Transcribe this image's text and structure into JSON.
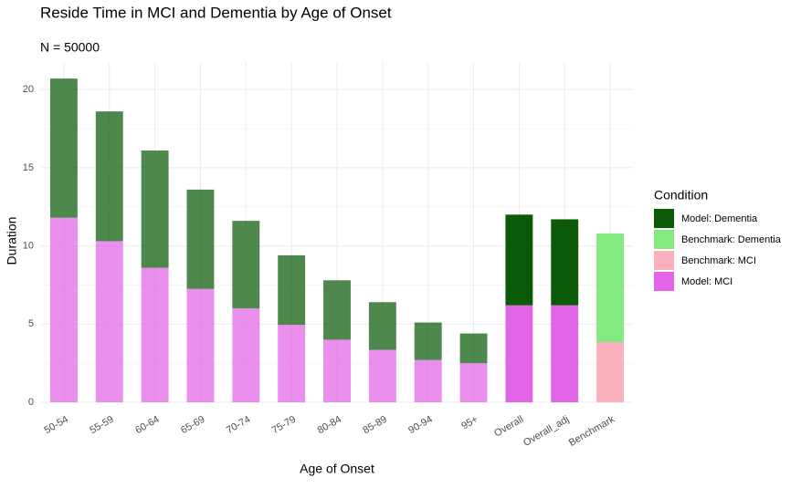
{
  "chart_data": {
    "type": "stacked_bar",
    "title": "Reside Time in MCI and Dementia by Age of Onset",
    "subtitle": "N = 50000",
    "x_label": "Age of Onset",
    "y_label": "Duration",
    "legend_title": "Condition",
    "categories": [
      "50-54",
      "55-59",
      "60-64",
      "65-69",
      "70-74",
      "75-79",
      "80-84",
      "85-89",
      "90-94",
      "95+",
      "Overall",
      "Overall_adj",
      "Benchmark"
    ],
    "series": [
      {
        "name": "Model: Dementia",
        "color": "#0b5a07",
        "values": [
          8.9,
          8.3,
          7.5,
          6.35,
          5.6,
          4.45,
          3.8,
          3.05,
          2.4,
          1.9,
          5.8,
          5.5,
          null
        ]
      },
      {
        "name": "Benchmark: Dementia",
        "color": "#82ea80",
        "values": [
          null,
          null,
          null,
          null,
          null,
          null,
          null,
          null,
          null,
          null,
          null,
          null,
          6.95
        ]
      },
      {
        "name": "Benchmark: MCI",
        "color": "#fbb1bd",
        "values": [
          null,
          null,
          null,
          null,
          null,
          null,
          null,
          null,
          null,
          null,
          null,
          null,
          3.85
        ]
      },
      {
        "name": "Model: MCI",
        "color": "#e264e8",
        "values": [
          11.8,
          10.3,
          8.6,
          7.25,
          6.0,
          4.95,
          4.0,
          3.35,
          2.7,
          2.5,
          6.2,
          6.2,
          null
        ]
      }
    ],
    "ylim": [
      0,
      21.7
    ],
    "yticks": [
      0,
      5,
      10,
      15,
      20
    ],
    "grid": true,
    "legend": "right"
  }
}
